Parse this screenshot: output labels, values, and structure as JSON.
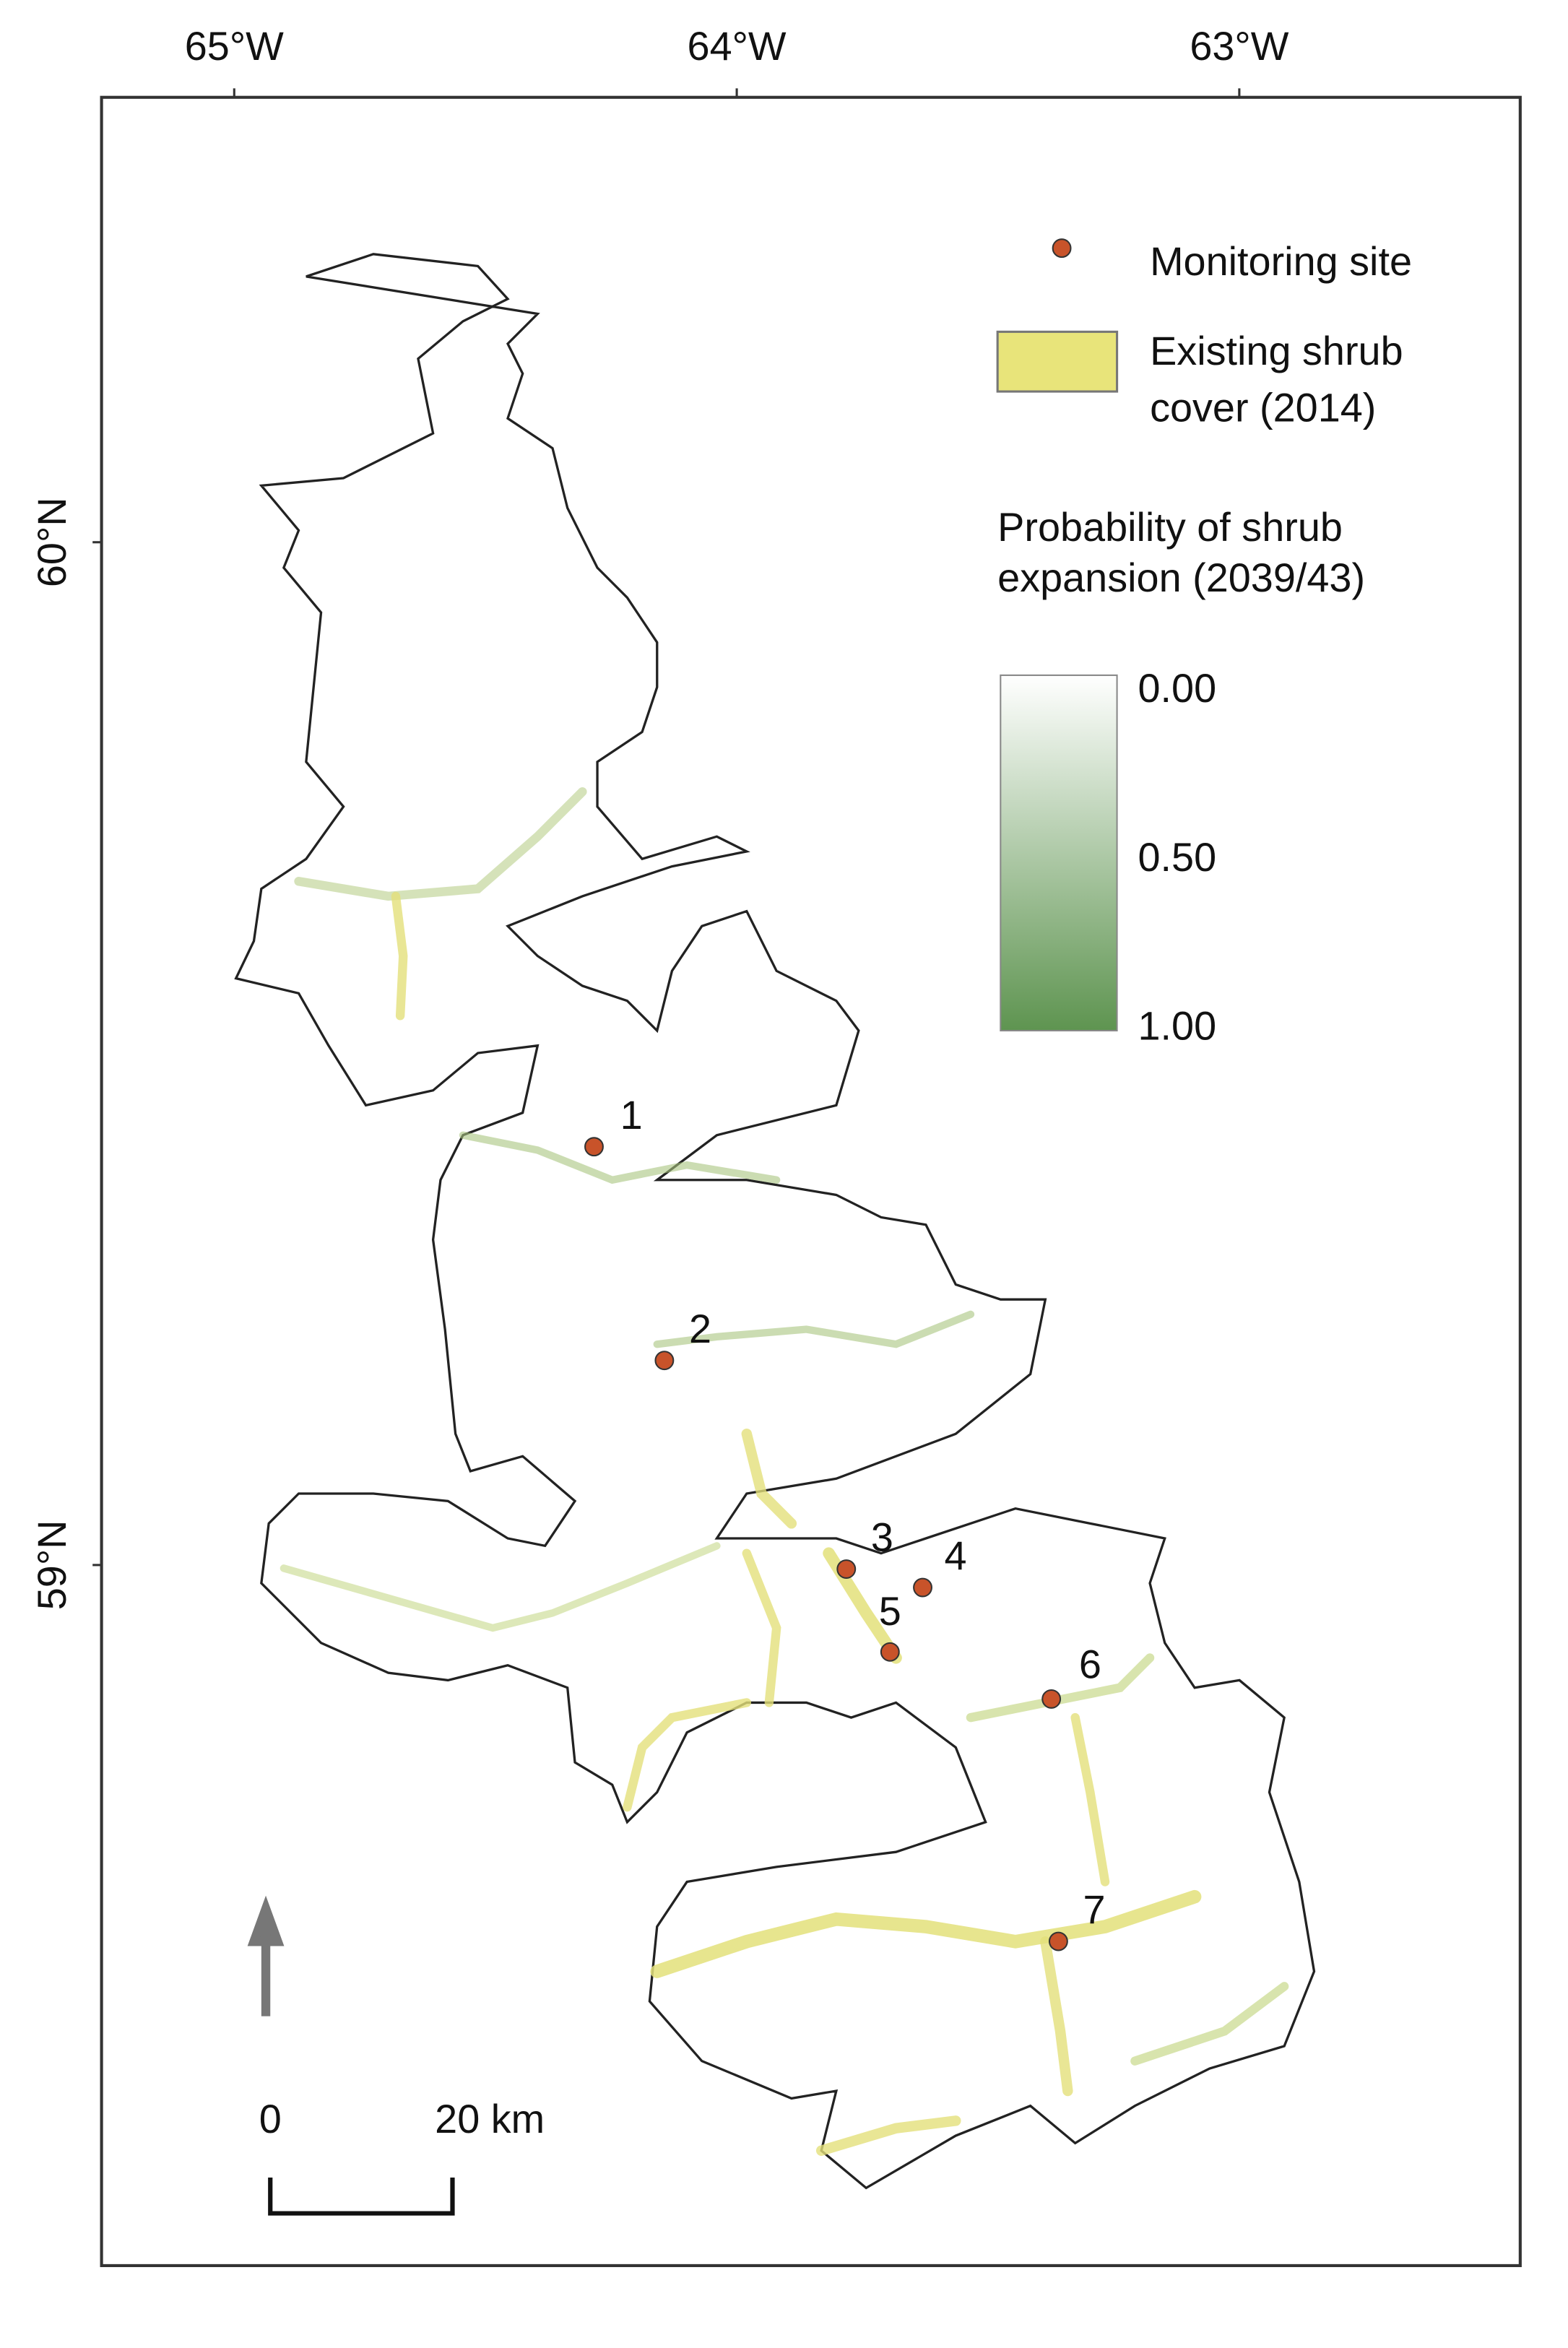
{
  "map": {
    "xlim": [
      -65.264,
      -62.441
    ],
    "ylim": [
      58.315,
      60.435
    ],
    "xticks": [
      {
        "value": -65,
        "label": "65°W"
      },
      {
        "value": -64,
        "label": "64°W"
      },
      {
        "value": -63,
        "label": "63°W"
      }
    ],
    "yticks": [
      {
        "value": 60,
        "label": "60°N"
      },
      {
        "value": 59,
        "label": "59°N"
      }
    ],
    "sites": {
      "color": "#c8532a",
      "labels": [
        "1",
        "2",
        "3",
        "4",
        "5",
        "6",
        "7"
      ],
      "lon": [
        -64.284,
        -64.144,
        -63.782,
        -63.63,
        -63.695,
        -63.374,
        -63.36
      ],
      "lat": [
        59.409,
        59.2,
        58.996,
        58.978,
        58.915,
        58.869,
        58.632
      ]
    },
    "legend": {
      "site": "Monitoring site",
      "shrub_line1": "Existing shrub",
      "shrub_line2": "cover (2014)",
      "shrub_color": "#e8e47a"
    },
    "colorbar": {
      "title_line1": "Probability of shrub",
      "title_line2": "expansion (2039/43)",
      "low_color": "#ffffff",
      "high_color": "#5e9450",
      "ticks": [
        {
          "value": 0,
          "label": "0.00"
        },
        {
          "value": 0.5,
          "label": "0.50"
        },
        {
          "value": 1,
          "label": "1.00"
        }
      ]
    },
    "scale_bar": {
      "start": "0",
      "end": "20 km"
    }
  }
}
